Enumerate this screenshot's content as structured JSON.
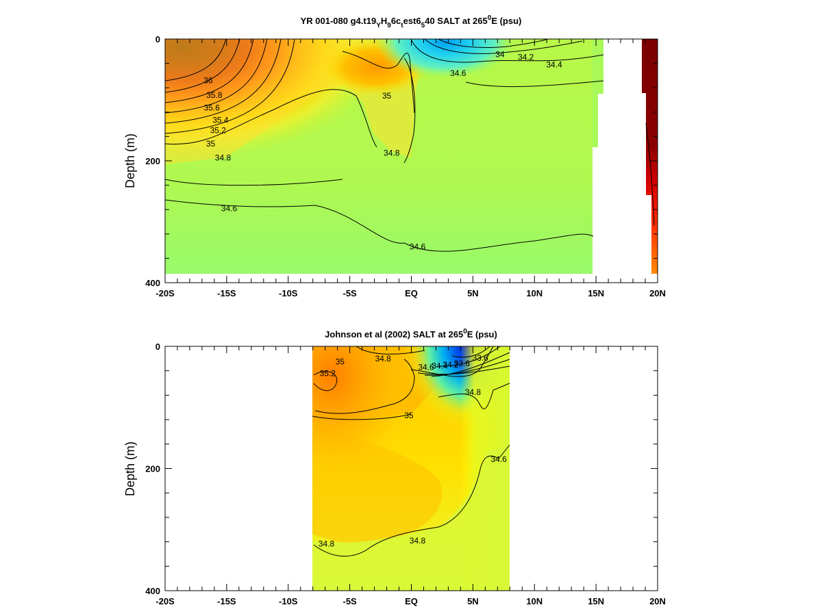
{
  "chart_data": [
    {
      "type": "heatmap",
      "title_parts": {
        "main": "YR 001-080 g4.t19",
        "sub1": "Y",
        "mid1": "H",
        "sub2": "9",
        "mid2": "6c",
        "sub3": "t",
        "mid3": "est6",
        "sub4": "5",
        "end_pre": "40 SALT at 265",
        "sup": "0",
        "end_post": "E (psu)"
      },
      "ylabel": "Depth (m)",
      "xlim": [
        -20,
        20
      ],
      "ylim": [
        0,
        400
      ],
      "y_inverted": true,
      "x_ticks": [
        {
          "value": -20,
          "label": "-20S"
        },
        {
          "value": -15,
          "label": "-15S"
        },
        {
          "value": -10,
          "label": "-10S"
        },
        {
          "value": -5,
          "label": "-5S"
        },
        {
          "value": 0,
          "label": "EQ"
        },
        {
          "value": 5,
          "label": "5N"
        },
        {
          "value": 10,
          "label": "10N"
        },
        {
          "value": 15,
          "label": "15N"
        },
        {
          "value": 20,
          "label": "20N"
        }
      ],
      "y_ticks": [
        {
          "value": 0,
          "label": "0"
        },
        {
          "value": 200,
          "label": "200"
        },
        {
          "value": 400,
          "label": "400"
        }
      ],
      "contour_labels": [
        {
          "text": "36",
          "x": -16.5,
          "y": 68
        },
        {
          "text": "35.8",
          "x": -16.0,
          "y": 92
        },
        {
          "text": "35.6",
          "x": -16.2,
          "y": 113
        },
        {
          "text": "35.4",
          "x": -15.5,
          "y": 133
        },
        {
          "text": "35.2",
          "x": -15.7,
          "y": 150
        },
        {
          "text": "35",
          "x": -16.3,
          "y": 172
        },
        {
          "text": "34.8",
          "x": -15.3,
          "y": 195
        },
        {
          "text": "34.6",
          "x": -14.8,
          "y": 278
        },
        {
          "text": "35",
          "x": -2.0,
          "y": 93
        },
        {
          "text": "34.8",
          "x": -1.6,
          "y": 187
        },
        {
          "text": "34.6",
          "x": 0.5,
          "y": 341
        },
        {
          "text": "34.6",
          "x": 3.8,
          "y": 56
        },
        {
          "text": "34",
          "x": 7.2,
          "y": 25
        },
        {
          "text": "34.2",
          "x": 9.3,
          "y": 30
        },
        {
          "text": "34.4",
          "x": 11.6,
          "y": 42
        }
      ]
    },
    {
      "type": "heatmap",
      "title_parts": {
        "pre": "Johnson et al (2002) SALT at 265",
        "sup": "0",
        "post": "E (psu)"
      },
      "ylabel": "Depth (m)",
      "xlim": [
        -20,
        20
      ],
      "ylim": [
        0,
        400
      ],
      "y_inverted": true,
      "data_extent_x": [
        -8,
        8
      ],
      "x_ticks": [
        {
          "value": -20,
          "label": "-20S"
        },
        {
          "value": -15,
          "label": "-15S"
        },
        {
          "value": -10,
          "label": "-10S"
        },
        {
          "value": -5,
          "label": "-5S"
        },
        {
          "value": 0,
          "label": "EQ"
        },
        {
          "value": 5,
          "label": "5N"
        },
        {
          "value": 10,
          "label": "10N"
        },
        {
          "value": 15,
          "label": "15N"
        },
        {
          "value": 20,
          "label": "20N"
        }
      ],
      "y_ticks": [
        {
          "value": 0,
          "label": "0"
        },
        {
          "value": 200,
          "label": "200"
        },
        {
          "value": 400,
          "label": "400"
        }
      ],
      "contour_labels": [
        {
          "text": "35",
          "x": -5.8,
          "y": 25
        },
        {
          "text": "34.8",
          "x": -2.3,
          "y": 20
        },
        {
          "text": "35.2",
          "x": -6.8,
          "y": 44
        },
        {
          "text": "34.6",
          "x": 1.2,
          "y": 34
        },
        {
          "text": "34.4",
          "x": 2.3,
          "y": 32
        },
        {
          "text": "34.2",
          "x": 3.2,
          "y": 30
        },
        {
          "text": "33.6",
          "x": 4.1,
          "y": 28
        },
        {
          "text": "33.6",
          "x": 5.6,
          "y": 19
        },
        {
          "text": "34.8",
          "x": 5.0,
          "y": 75
        },
        {
          "text": "35",
          "x": -0.2,
          "y": 113
        },
        {
          "text": "34.6",
          "x": 7.1,
          "y": 185
        },
        {
          "text": "34.8",
          "x": -6.9,
          "y": 323
        },
        {
          "text": "34.8",
          "x": 0.5,
          "y": 318
        }
      ]
    }
  ]
}
